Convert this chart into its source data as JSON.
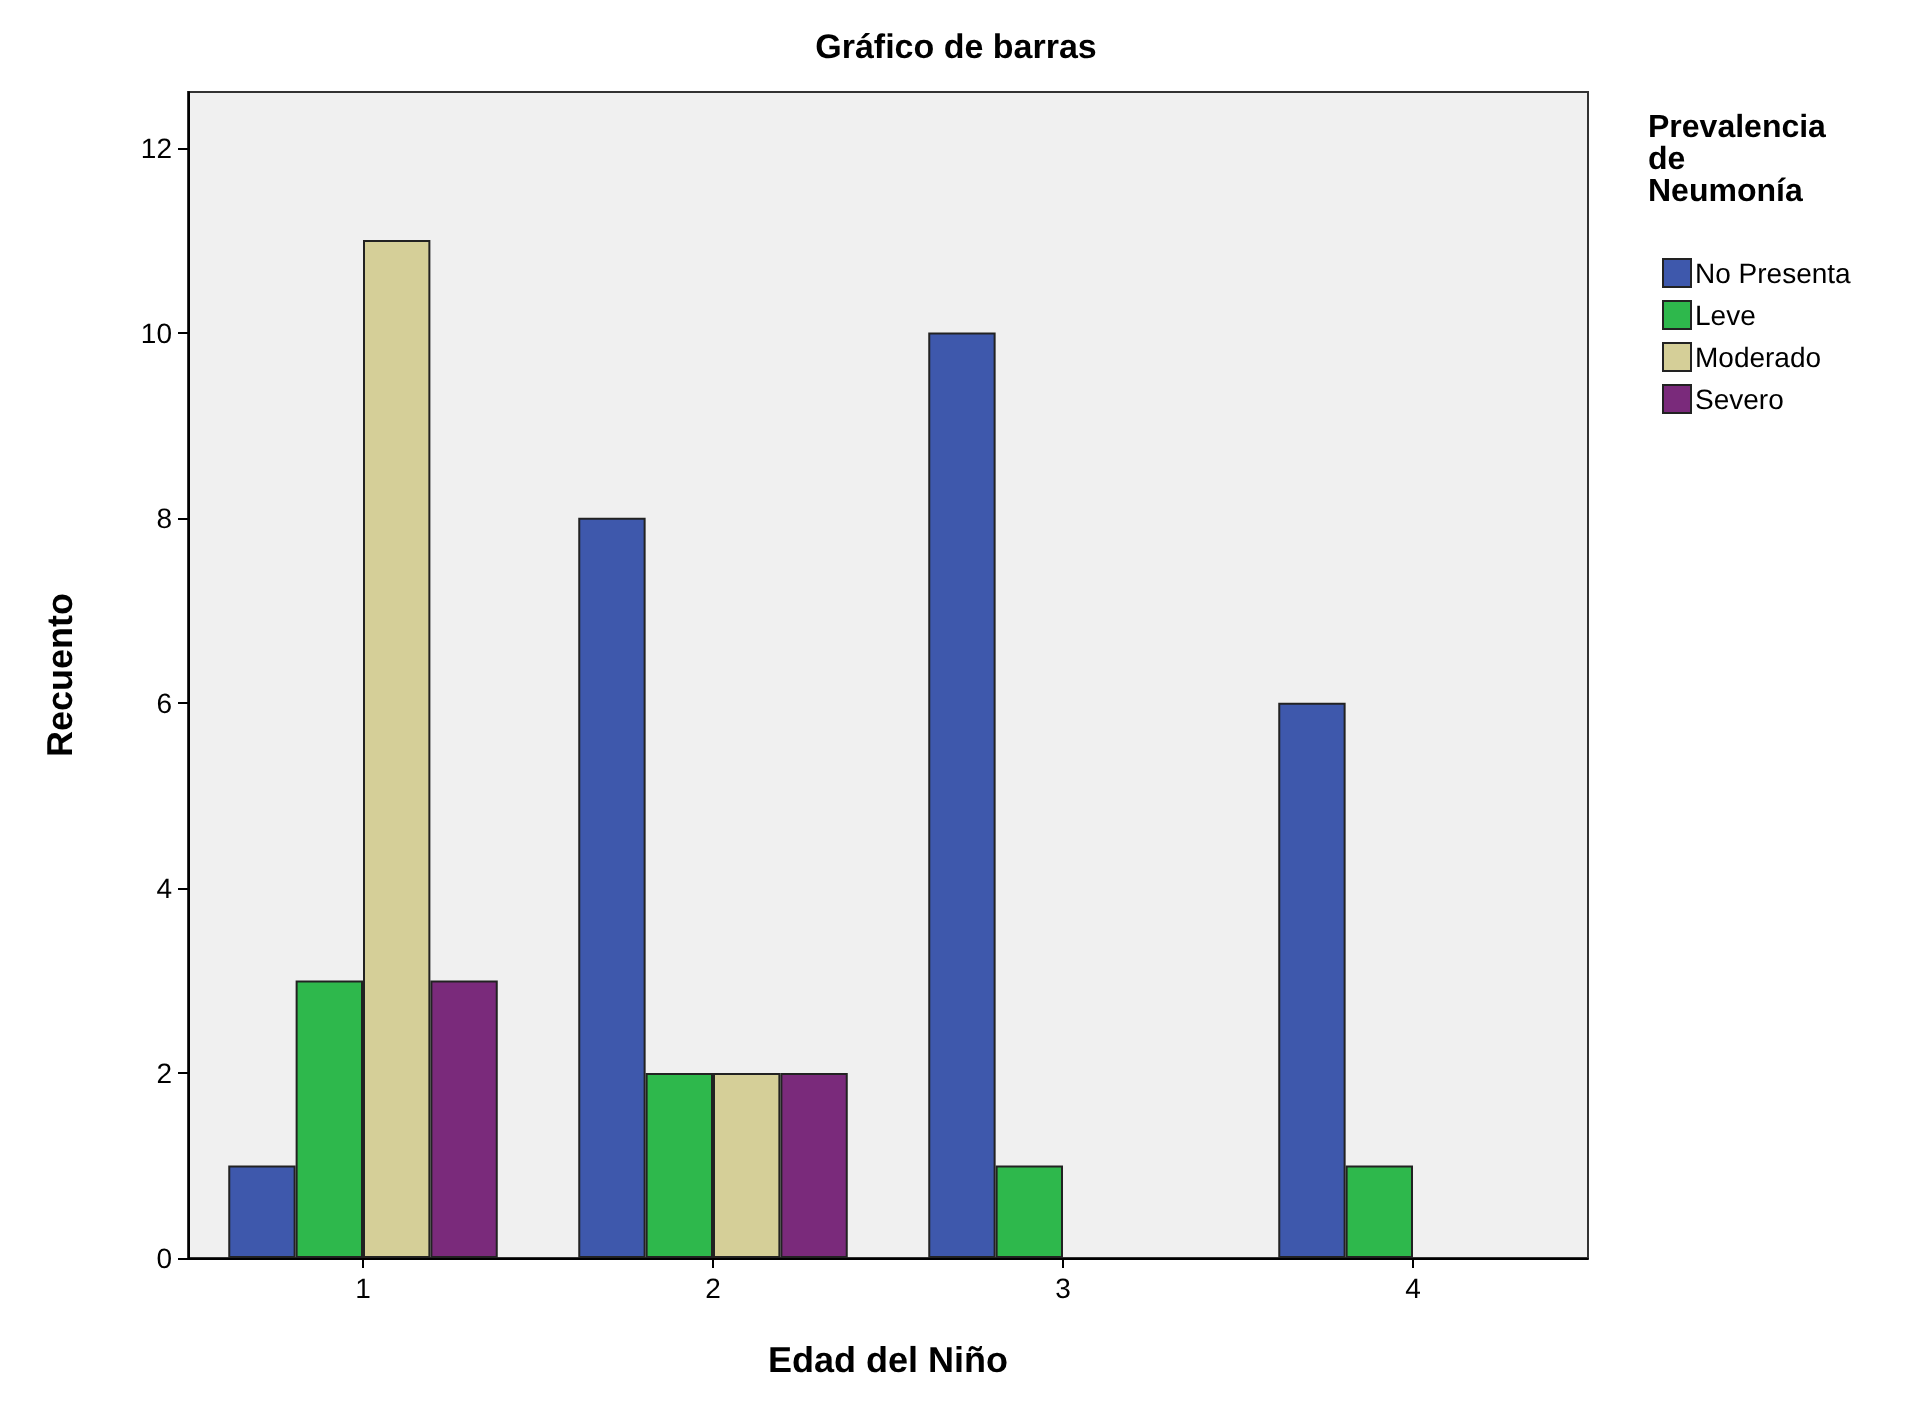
{
  "chart_data": {
    "type": "bar",
    "title": "Gráfico de barras",
    "xlabel": "Edad del Niño",
    "ylabel": "Recuento",
    "legend_title": "Prevalencia\nde\nNeumonía",
    "categories": [
      "1",
      "2",
      "3",
      "4"
    ],
    "series": [
      {
        "name": "No Presenta",
        "color": "#3e58ac",
        "values": [
          1,
          8,
          10,
          6
        ]
      },
      {
        "name": "Leve",
        "color": "#2eb84c",
        "values": [
          3,
          2,
          1,
          1
        ]
      },
      {
        "name": "Moderado",
        "color": "#d5cf98",
        "values": [
          11,
          2,
          null,
          null
        ]
      },
      {
        "name": "Severo",
        "color": "#7a2a7b",
        "values": [
          3,
          2,
          null,
          null
        ]
      }
    ],
    "ylim": [
      0,
      12.6
    ],
    "yticks": [
      0,
      2,
      4,
      6,
      8,
      10,
      12
    ],
    "grid": false,
    "legend": "top right"
  }
}
